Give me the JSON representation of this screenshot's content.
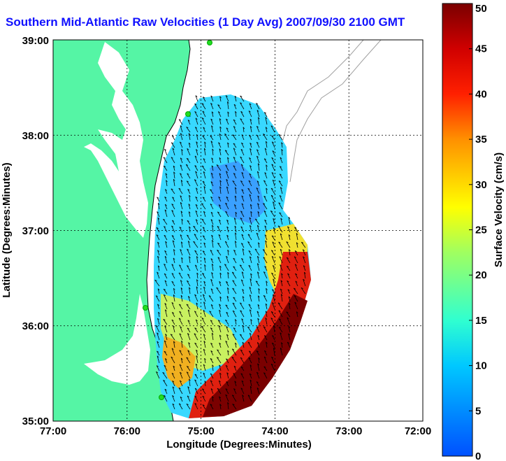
{
  "title": "Southern Mid-Atlantic Raw Velocities (1 Day Avg) 2007/09/30 2100 GMT",
  "xlabel": "Longitude (Degrees:Minutes)",
  "ylabel": "Latitude (Degrees:Minutes)",
  "x_ticks": [
    "77:00",
    "76:00",
    "75:00",
    "74:00",
    "73:00",
    "72:00"
  ],
  "y_ticks": [
    "39:00",
    "38:00",
    "37:00",
    "36:00",
    "35:00"
  ],
  "colorbar": {
    "label": "Surface Velocity (cm/s)",
    "ticks": [
      "0",
      "5",
      "10",
      "15",
      "20",
      "25",
      "30",
      "35",
      "40",
      "45",
      "50"
    ],
    "min": 0,
    "max": 50
  },
  "colors": {
    "land": "#55f5a5",
    "title": "#1010ff",
    "grid": "#000000",
    "bathymetry": "#a0a0a0",
    "station": "#22dd22"
  },
  "chart_data": {
    "type": "heatmap",
    "xlim": [
      -77,
      -72
    ],
    "ylim": [
      35,
      39
    ],
    "grid": true,
    "colorbar_range": [
      0,
      50
    ]
  }
}
